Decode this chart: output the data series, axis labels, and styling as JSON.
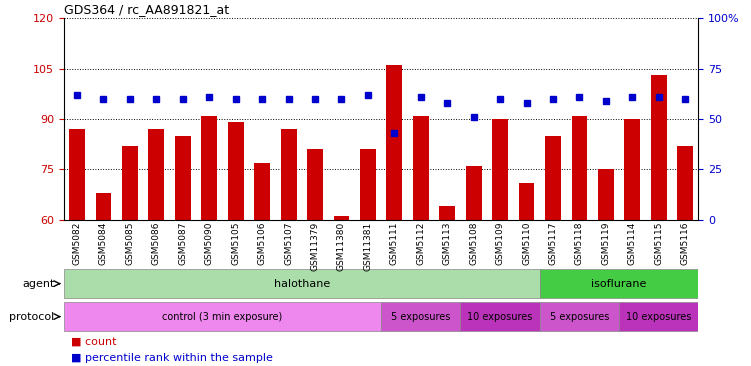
{
  "title": "GDS364 / rc_AA891821_at",
  "categories": [
    "GSM5082",
    "GSM5084",
    "GSM5085",
    "GSM5086",
    "GSM5087",
    "GSM5090",
    "GSM5105",
    "GSM5106",
    "GSM5107",
    "GSM11379",
    "GSM11380",
    "GSM11381",
    "GSM5111",
    "GSM5112",
    "GSM5113",
    "GSM5108",
    "GSM5109",
    "GSM5110",
    "GSM5117",
    "GSM5118",
    "GSM5119",
    "GSM5114",
    "GSM5115",
    "GSM5116"
  ],
  "bar_values": [
    87,
    68,
    82,
    87,
    85,
    91,
    89,
    77,
    87,
    81,
    61,
    81,
    106,
    91,
    64,
    76,
    90,
    71,
    85,
    91,
    75,
    90,
    103,
    82
  ],
  "percentile_values": [
    62,
    60,
    60,
    60,
    60,
    61,
    60,
    60,
    60,
    60,
    60,
    62,
    43,
    61,
    58,
    51,
    60,
    58,
    60,
    61,
    59,
    61,
    61,
    60
  ],
  "ylim_left": [
    60,
    120
  ],
  "ylim_right": [
    0,
    100
  ],
  "yticks_left": [
    60,
    75,
    90,
    105,
    120
  ],
  "yticks_right": [
    0,
    25,
    50,
    75,
    100
  ],
  "ytick_labels_right": [
    "0",
    "25",
    "50",
    "75",
    "100%"
  ],
  "bar_color": "#cc0000",
  "dot_color": "#0000cc",
  "bg_color": "#ffffff",
  "agent_groups": [
    {
      "label": "halothane",
      "start": 0,
      "end": 18,
      "color": "#aaddaa"
    },
    {
      "label": "isoflurane",
      "start": 18,
      "end": 24,
      "color": "#44cc44"
    }
  ],
  "protocol_groups": [
    {
      "label": "control (3 min exposure)",
      "start": 0,
      "end": 12,
      "color": "#ee88ee"
    },
    {
      "label": "5 exposures",
      "start": 12,
      "end": 15,
      "color": "#cc44cc"
    },
    {
      "label": "10 exposures",
      "start": 15,
      "end": 18,
      "color": "#aa22aa"
    },
    {
      "label": "5 exposures",
      "start": 18,
      "end": 21,
      "color": "#cc44cc"
    },
    {
      "label": "10 exposures",
      "start": 21,
      "end": 24,
      "color": "#aa22aa"
    }
  ],
  "legend_items": [
    {
      "label": "count",
      "color": "#cc0000"
    },
    {
      "label": "percentile rank within the sample",
      "color": "#0000cc"
    }
  ]
}
